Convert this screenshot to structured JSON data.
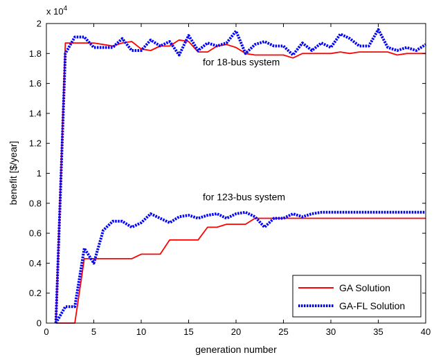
{
  "chart_data": {
    "type": "line",
    "xlabel": "generation number",
    "ylabel": "benefit [$/year]",
    "xlim": [
      0,
      40
    ],
    "ylim": [
      0,
      2
    ],
    "y_multiplier": "x 10",
    "y_multiplier_exp": "4",
    "xticks": [
      0,
      5,
      10,
      15,
      20,
      25,
      30,
      35,
      40
    ],
    "yticks": [
      0,
      0.2,
      0.4,
      0.6,
      0.8,
      1,
      1.2,
      1.4,
      1.6,
      1.8,
      2
    ],
    "ytick_labels": [
      "0",
      "0.2",
      "0.4",
      "0.6",
      "0.8",
      "1",
      "1.2",
      "1.4",
      "1.6",
      "1.8",
      "2"
    ],
    "grid": false,
    "legend": {
      "placement": "bottom-right",
      "entries": [
        "GA Solution",
        "GA-FL Solution"
      ]
    },
    "annotations": [
      {
        "text": "for 18-bus system",
        "x": 16.5,
        "y": 1.72
      },
      {
        "text": "for 123-bus system",
        "x": 16.5,
        "y": 0.82
      }
    ],
    "series": [
      {
        "name": "GA Solution",
        "group": "18-bus",
        "color": "#ff0000",
        "style": "solid",
        "x": [
          1,
          2,
          3,
          4,
          5,
          6,
          7,
          8,
          9,
          10,
          11,
          12,
          13,
          14,
          15,
          16,
          17,
          18,
          19,
          20,
          21,
          22,
          23,
          24,
          25,
          26,
          27,
          28,
          29,
          30,
          31,
          32,
          33,
          34,
          35,
          36,
          37,
          38,
          39,
          40
        ],
        "y": [
          0,
          1.87,
          1.87,
          1.87,
          1.87,
          1.86,
          1.85,
          1.87,
          1.88,
          1.83,
          1.82,
          1.85,
          1.85,
          1.89,
          1.88,
          1.81,
          1.81,
          1.85,
          1.86,
          1.84,
          1.8,
          1.79,
          1.79,
          1.79,
          1.79,
          1.77,
          1.8,
          1.8,
          1.8,
          1.8,
          1.81,
          1.8,
          1.81,
          1.81,
          1.81,
          1.81,
          1.79,
          1.8,
          1.8,
          1.8
        ]
      },
      {
        "name": "GA-FL Solution",
        "group": "18-bus",
        "color": "#0000ff",
        "style": "dotted",
        "x": [
          1,
          2,
          3,
          4,
          5,
          6,
          7,
          8,
          9,
          10,
          11,
          12,
          13,
          14,
          15,
          16,
          17,
          18,
          19,
          20,
          21,
          22,
          23,
          24,
          25,
          26,
          27,
          28,
          29,
          30,
          31,
          32,
          33,
          34,
          35,
          36,
          37,
          38,
          39,
          40
        ],
        "y": [
          0,
          1.8,
          1.91,
          1.91,
          1.84,
          1.84,
          1.84,
          1.9,
          1.82,
          1.82,
          1.89,
          1.85,
          1.88,
          1.79,
          1.92,
          1.82,
          1.87,
          1.85,
          1.87,
          1.95,
          1.8,
          1.86,
          1.88,
          1.85,
          1.85,
          1.79,
          1.87,
          1.82,
          1.87,
          1.84,
          1.93,
          1.9,
          1.85,
          1.85,
          1.96,
          1.84,
          1.82,
          1.84,
          1.82,
          1.86
        ]
      },
      {
        "name": "GA Solution",
        "group": "123-bus",
        "color": "#ff0000",
        "style": "solid",
        "x": [
          1,
          2,
          3,
          4,
          5,
          6,
          7,
          8,
          9,
          10,
          11,
          12,
          13,
          14,
          15,
          16,
          17,
          18,
          19,
          20,
          21,
          22,
          23,
          24,
          25,
          26,
          27,
          28,
          29,
          30,
          31,
          32,
          33,
          34,
          35,
          36,
          37,
          38,
          39,
          40
        ],
        "y": [
          0,
          0,
          0,
          0.43,
          0.43,
          0.43,
          0.43,
          0.43,
          0.43,
          0.46,
          0.46,
          0.46,
          0.555,
          0.555,
          0.555,
          0.555,
          0.64,
          0.64,
          0.66,
          0.66,
          0.66,
          0.7,
          0.7,
          0.7,
          0.7,
          0.7,
          0.7,
          0.7,
          0.7,
          0.7,
          0.7,
          0.7,
          0.7,
          0.7,
          0.7,
          0.7,
          0.7,
          0.7,
          0.7,
          0.7
        ]
      },
      {
        "name": "GA-FL Solution",
        "group": "123-bus",
        "color": "#0000ff",
        "style": "dotted",
        "x": [
          1,
          2,
          3,
          4,
          5,
          6,
          7,
          8,
          9,
          10,
          11,
          12,
          13,
          14,
          15,
          16,
          17,
          18,
          19,
          20,
          21,
          22,
          23,
          24,
          25,
          26,
          27,
          28,
          29,
          30,
          31,
          32,
          33,
          34,
          35,
          36,
          37,
          38,
          39,
          40
        ],
        "y": [
          0,
          0.11,
          0.11,
          0.5,
          0.4,
          0.62,
          0.68,
          0.68,
          0.64,
          0.67,
          0.73,
          0.7,
          0.67,
          0.71,
          0.72,
          0.7,
          0.72,
          0.73,
          0.7,
          0.73,
          0.74,
          0.71,
          0.64,
          0.7,
          0.7,
          0.73,
          0.71,
          0.73,
          0.74,
          0.74,
          0.74,
          0.74,
          0.74,
          0.74,
          0.74,
          0.74,
          0.74,
          0.74,
          0.74,
          0.74
        ]
      }
    ]
  }
}
